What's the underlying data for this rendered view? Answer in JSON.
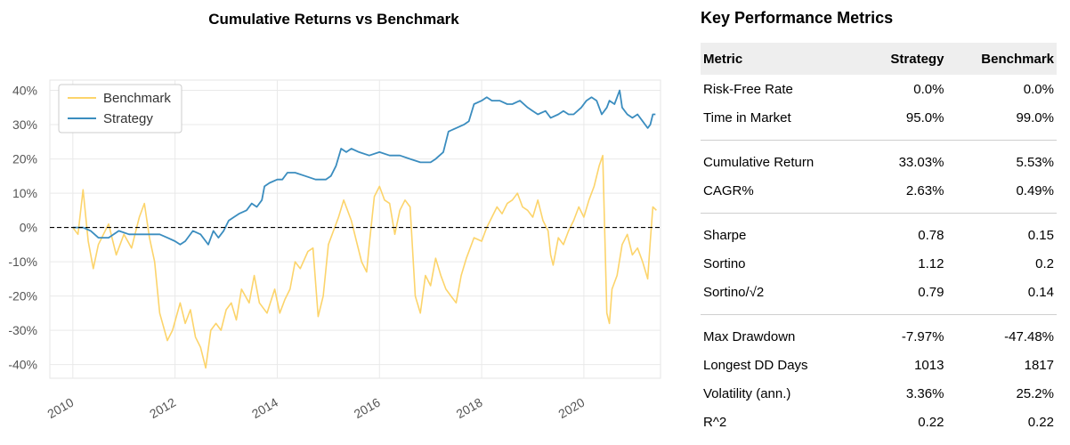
{
  "chart_data": {
    "type": "line",
    "title": "Cumulative Returns vs Benchmark",
    "xlabel": "",
    "ylabel": "",
    "xlim": [
      2009.55,
      2021.5
    ],
    "ylim": [
      -44,
      43
    ],
    "grid": true,
    "legend_position": "top-left",
    "y_ticks": [
      -40,
      -30,
      -20,
      -10,
      0,
      10,
      20,
      30,
      40
    ],
    "y_tick_labels": [
      "-40%",
      "-30%",
      "-20%",
      "-10%",
      "0%",
      "10%",
      "20%",
      "30%",
      "40%"
    ],
    "x_ticks": [
      2010,
      2012,
      2014,
      2016,
      2018,
      2020
    ],
    "x_tick_labels": [
      "2010",
      "2012",
      "2014",
      "2016",
      "2018",
      "2020"
    ],
    "reference_line": {
      "y": 0,
      "style": "dashed",
      "color": "#000000"
    },
    "series": [
      {
        "name": "Benchmark",
        "color": "#fcd46b",
        "points": [
          [
            2010.0,
            0
          ],
          [
            2010.1,
            -2
          ],
          [
            2010.2,
            11
          ],
          [
            2010.3,
            -4
          ],
          [
            2010.4,
            -12
          ],
          [
            2010.5,
            -5
          ],
          [
            2010.7,
            1
          ],
          [
            2010.85,
            -8
          ],
          [
            2011.0,
            -2
          ],
          [
            2011.15,
            -6
          ],
          [
            2011.3,
            3
          ],
          [
            2011.4,
            7
          ],
          [
            2011.5,
            -3
          ],
          [
            2011.6,
            -10
          ],
          [
            2011.7,
            -25
          ],
          [
            2011.85,
            -33
          ],
          [
            2011.95,
            -30
          ],
          [
            2012.1,
            -22
          ],
          [
            2012.2,
            -28
          ],
          [
            2012.3,
            -24
          ],
          [
            2012.4,
            -32
          ],
          [
            2012.5,
            -35
          ],
          [
            2012.6,
            -41
          ],
          [
            2012.7,
            -30
          ],
          [
            2012.8,
            -28
          ],
          [
            2012.9,
            -30
          ],
          [
            2013.0,
            -24
          ],
          [
            2013.1,
            -22
          ],
          [
            2013.2,
            -27
          ],
          [
            2013.3,
            -18
          ],
          [
            2013.45,
            -22
          ],
          [
            2013.55,
            -14
          ],
          [
            2013.65,
            -22
          ],
          [
            2013.8,
            -25
          ],
          [
            2013.95,
            -18
          ],
          [
            2014.05,
            -25
          ],
          [
            2014.15,
            -21
          ],
          [
            2014.25,
            -18
          ],
          [
            2014.35,
            -10
          ],
          [
            2014.45,
            -12
          ],
          [
            2014.6,
            -7
          ],
          [
            2014.7,
            -6
          ],
          [
            2014.8,
            -26
          ],
          [
            2014.9,
            -20
          ],
          [
            2015.0,
            -5
          ],
          [
            2015.1,
            -1
          ],
          [
            2015.2,
            3
          ],
          [
            2015.3,
            8
          ],
          [
            2015.45,
            2
          ],
          [
            2015.55,
            -4
          ],
          [
            2015.65,
            -10
          ],
          [
            2015.75,
            -13
          ],
          [
            2015.8,
            -5
          ],
          [
            2015.9,
            9
          ],
          [
            2016.0,
            12
          ],
          [
            2016.1,
            8
          ],
          [
            2016.2,
            7
          ],
          [
            2016.3,
            -2
          ],
          [
            2016.4,
            5
          ],
          [
            2016.5,
            8
          ],
          [
            2016.6,
            6
          ],
          [
            2016.7,
            -20
          ],
          [
            2016.8,
            -25
          ],
          [
            2016.9,
            -14
          ],
          [
            2017.0,
            -17
          ],
          [
            2017.1,
            -9
          ],
          [
            2017.2,
            -14
          ],
          [
            2017.3,
            -18
          ],
          [
            2017.4,
            -20
          ],
          [
            2017.5,
            -22
          ],
          [
            2017.6,
            -14
          ],
          [
            2017.7,
            -9
          ],
          [
            2017.85,
            -3
          ],
          [
            2018.0,
            -4
          ],
          [
            2018.1,
            0
          ],
          [
            2018.2,
            3
          ],
          [
            2018.3,
            6
          ],
          [
            2018.4,
            4
          ],
          [
            2018.5,
            7
          ],
          [
            2018.6,
            8
          ],
          [
            2018.7,
            10
          ],
          [
            2018.8,
            6
          ],
          [
            2018.9,
            5
          ],
          [
            2019.0,
            3
          ],
          [
            2019.1,
            8
          ],
          [
            2019.2,
            2
          ],
          [
            2019.3,
            -1
          ],
          [
            2019.35,
            -8
          ],
          [
            2019.4,
            -11
          ],
          [
            2019.5,
            -3
          ],
          [
            2019.6,
            -5
          ],
          [
            2019.7,
            -1
          ],
          [
            2019.8,
            2
          ],
          [
            2019.9,
            6
          ],
          [
            2020.0,
            3
          ],
          [
            2020.1,
            8
          ],
          [
            2020.2,
            12
          ],
          [
            2020.3,
            18
          ],
          [
            2020.37,
            21
          ],
          [
            2020.45,
            -25
          ],
          [
            2020.5,
            -28
          ],
          [
            2020.55,
            -18
          ],
          [
            2020.65,
            -14
          ],
          [
            2020.75,
            -5
          ],
          [
            2020.85,
            -2
          ],
          [
            2020.95,
            -8
          ],
          [
            2021.05,
            -6
          ],
          [
            2021.15,
            -10
          ],
          [
            2021.25,
            -15
          ],
          [
            2021.3,
            -4
          ],
          [
            2021.35,
            6
          ],
          [
            2021.42,
            5
          ]
        ]
      },
      {
        "name": "Strategy",
        "color": "#3b8dbf",
        "points": [
          [
            2010.0,
            0
          ],
          [
            2010.2,
            0
          ],
          [
            2010.35,
            -1
          ],
          [
            2010.5,
            -3
          ],
          [
            2010.7,
            -3
          ],
          [
            2010.9,
            -1
          ],
          [
            2011.1,
            -2
          ],
          [
            2011.3,
            -2
          ],
          [
            2011.5,
            -2
          ],
          [
            2011.7,
            -2
          ],
          [
            2011.85,
            -3
          ],
          [
            2012.0,
            -4
          ],
          [
            2012.1,
            -5
          ],
          [
            2012.2,
            -4
          ],
          [
            2012.35,
            -1
          ],
          [
            2012.5,
            -2
          ],
          [
            2012.6,
            -4
          ],
          [
            2012.65,
            -5
          ],
          [
            2012.75,
            -1
          ],
          [
            2012.85,
            -3
          ],
          [
            2012.95,
            -1
          ],
          [
            2013.05,
            2
          ],
          [
            2013.15,
            3
          ],
          [
            2013.25,
            4
          ],
          [
            2013.4,
            5
          ],
          [
            2013.5,
            7
          ],
          [
            2013.6,
            6
          ],
          [
            2013.7,
            8
          ],
          [
            2013.75,
            12
          ],
          [
            2013.85,
            13
          ],
          [
            2014.0,
            14
          ],
          [
            2014.1,
            14
          ],
          [
            2014.2,
            16
          ],
          [
            2014.35,
            16
          ],
          [
            2014.55,
            15
          ],
          [
            2014.75,
            14
          ],
          [
            2014.95,
            14
          ],
          [
            2015.05,
            15
          ],
          [
            2015.15,
            18
          ],
          [
            2015.25,
            23
          ],
          [
            2015.35,
            22
          ],
          [
            2015.45,
            23
          ],
          [
            2015.6,
            22
          ],
          [
            2015.8,
            21
          ],
          [
            2016.0,
            22
          ],
          [
            2016.2,
            21
          ],
          [
            2016.4,
            21
          ],
          [
            2016.6,
            20
          ],
          [
            2016.8,
            19
          ],
          [
            2017.0,
            19
          ],
          [
            2017.1,
            20
          ],
          [
            2017.25,
            22
          ],
          [
            2017.35,
            28
          ],
          [
            2017.5,
            29
          ],
          [
            2017.65,
            30
          ],
          [
            2017.75,
            31
          ],
          [
            2017.85,
            36
          ],
          [
            2018.0,
            37
          ],
          [
            2018.1,
            38
          ],
          [
            2018.2,
            37
          ],
          [
            2018.35,
            37
          ],
          [
            2018.5,
            36
          ],
          [
            2018.6,
            36
          ],
          [
            2018.75,
            37
          ],
          [
            2018.9,
            35
          ],
          [
            2019.0,
            34
          ],
          [
            2019.1,
            33
          ],
          [
            2019.25,
            34
          ],
          [
            2019.35,
            32
          ],
          [
            2019.5,
            33
          ],
          [
            2019.6,
            34
          ],
          [
            2019.7,
            33
          ],
          [
            2019.8,
            33
          ],
          [
            2019.95,
            35
          ],
          [
            2020.05,
            37
          ],
          [
            2020.15,
            38
          ],
          [
            2020.25,
            37
          ],
          [
            2020.35,
            33
          ],
          [
            2020.45,
            35
          ],
          [
            2020.5,
            37
          ],
          [
            2020.6,
            36
          ],
          [
            2020.65,
            38
          ],
          [
            2020.7,
            40
          ],
          [
            2020.75,
            35
          ],
          [
            2020.85,
            33
          ],
          [
            2020.95,
            32
          ],
          [
            2021.05,
            33
          ],
          [
            2021.15,
            31
          ],
          [
            2021.25,
            29
          ],
          [
            2021.3,
            30
          ],
          [
            2021.35,
            33
          ],
          [
            2021.4,
            33
          ]
        ]
      }
    ]
  },
  "metrics": {
    "title": "Key Performance Metrics",
    "headers": [
      "Metric",
      "Strategy",
      "Benchmark"
    ],
    "groups": [
      [
        [
          "Risk-Free Rate",
          "0.0%",
          "0.0%"
        ],
        [
          "Time in Market",
          "95.0%",
          "99.0%"
        ]
      ],
      [
        [
          "Cumulative Return",
          "33.03%",
          "5.53%"
        ],
        [
          "CAGR%",
          "2.63%",
          "0.49%"
        ]
      ],
      [
        [
          "Sharpe",
          "0.78",
          "0.15"
        ],
        [
          "Sortino",
          "1.12",
          "0.2"
        ],
        [
          "Sortino/√2",
          "0.79",
          "0.14"
        ]
      ],
      [
        [
          "Max Drawdown",
          "-7.97%",
          "-47.48%"
        ],
        [
          "Longest DD Days",
          "1013",
          "1817"
        ],
        [
          "Volatility (ann.)",
          "3.36%",
          "25.2%"
        ],
        [
          "R^2",
          "0.22",
          "0.22"
        ]
      ]
    ]
  }
}
